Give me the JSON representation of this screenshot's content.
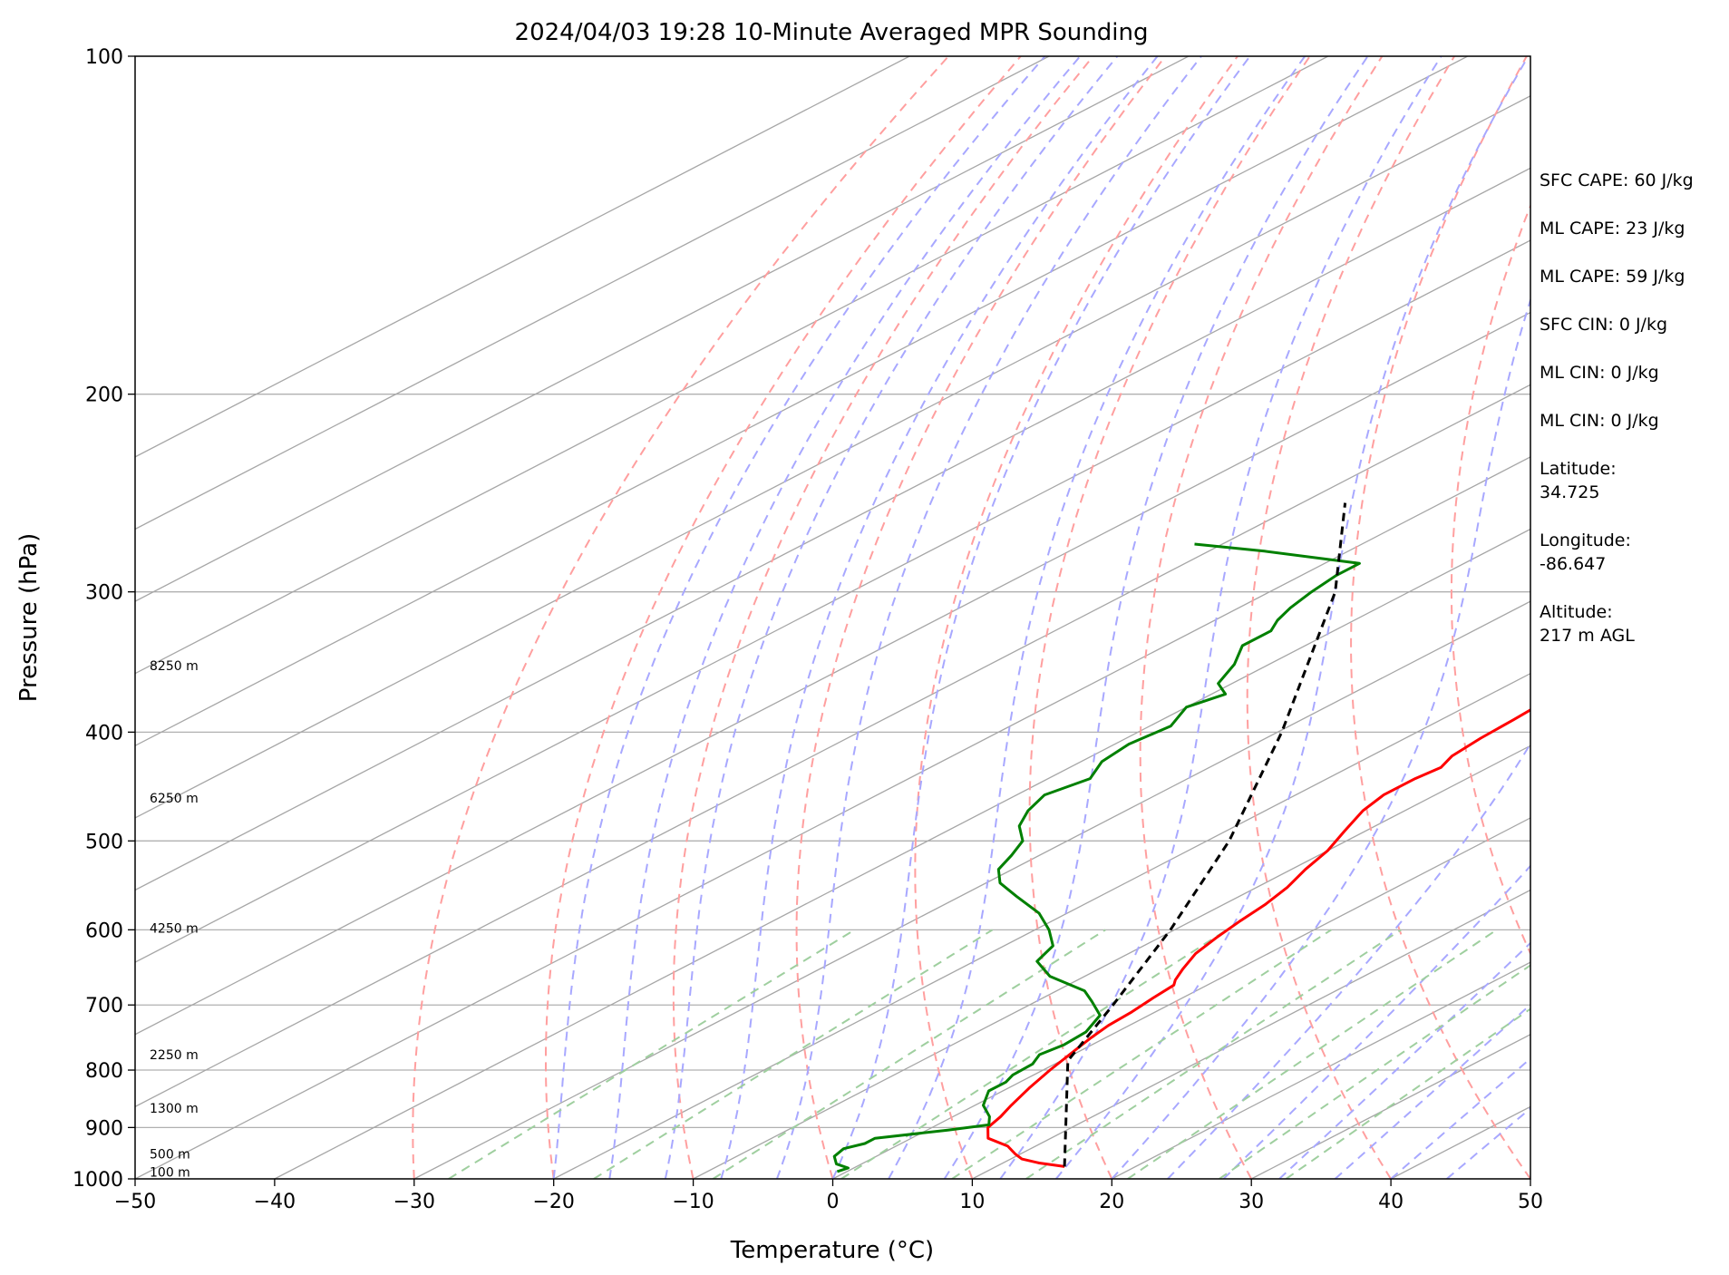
{
  "chart_data": {
    "type": "line",
    "subtype": "skew-t log-p sounding diagram",
    "title": "2024/04/03 19:28 10-Minute Averaged MPR Sounding",
    "xlabel": "Temperature (°C)",
    "ylabel": "Pressure (hPa)",
    "xlim": [
      -50,
      50
    ],
    "ylim": [
      1000,
      100
    ],
    "y_scale": "log (inverted)",
    "x_ticks": [
      "−50",
      "−40",
      "−30",
      "−20",
      "−10",
      "0",
      "10",
      "20",
      "30",
      "40",
      "50"
    ],
    "x_tick_values": [
      -50,
      -40,
      -30,
      -20,
      -10,
      0,
      10,
      20,
      30,
      40,
      50
    ],
    "y_ticks": [
      "100",
      "200",
      "300",
      "400",
      "500",
      "600",
      "700",
      "800",
      "900",
      "1000"
    ],
    "y_tick_values": [
      100,
      200,
      300,
      400,
      500,
      600,
      700,
      800,
      900,
      1000
    ],
    "grid": true,
    "skew_dx_per_log10p": 155.5,
    "background_lines": {
      "isotherms_color": "#a6a6a6",
      "dry_adiabats_color": "#ff9f9f",
      "moist_adiabats_color": "#a8a8ff",
      "mixing_ratio_color": "#9fcf9f",
      "isobar_color": "#b0b0b0"
    },
    "height_labels": [
      {
        "p": 986,
        "text": "100 m"
      },
      {
        "p": 950,
        "text": "500 m"
      },
      {
        "p": 865,
        "text": "1300 m"
      },
      {
        "p": 775,
        "text": "2250 m"
      },
      {
        "p": 598,
        "text": "4250 m"
      },
      {
        "p": 458,
        "text": "6250 m"
      },
      {
        "p": 349,
        "text": "8250 m"
      }
    ],
    "series": [
      {
        "kind": "temperature",
        "color": "#ff0000",
        "points": [
          {
            "p": 975,
            "t": 14.9
          },
          {
            "p": 968,
            "t": 12.6
          },
          {
            "p": 960,
            "t": 10.8
          },
          {
            "p": 950,
            "t": 9.6
          },
          {
            "p": 935,
            "t": 8.0
          },
          {
            "p": 920,
            "t": 5.5
          },
          {
            "p": 900,
            "t": 4.0
          },
          {
            "p": 880,
            "t": 3.4
          },
          {
            "p": 860,
            "t": 2.6
          },
          {
            "p": 830,
            "t": 1.5
          },
          {
            "p": 800,
            "t": 0.5
          },
          {
            "p": 770,
            "t": -0.4
          },
          {
            "p": 750,
            "t": -1.0
          },
          {
            "p": 730,
            "t": -1.5
          },
          {
            "p": 710,
            "t": -1.7
          },
          {
            "p": 690,
            "t": -2.1
          },
          {
            "p": 672,
            "t": -2.4
          },
          {
            "p": 665,
            "t": -3.0
          },
          {
            "p": 650,
            "t": -4.0
          },
          {
            "p": 630,
            "t": -5.2
          },
          {
            "p": 610,
            "t": -5.9
          },
          {
            "p": 590,
            "t": -6.5
          },
          {
            "p": 570,
            "t": -7.0
          },
          {
            "p": 550,
            "t": -7.8
          },
          {
            "p": 530,
            "t": -9.0
          },
          {
            "p": 510,
            "t": -10.0
          },
          {
            "p": 490,
            "t": -11.5
          },
          {
            "p": 470,
            "t": -13.0
          },
          {
            "p": 455,
            "t": -13.7
          },
          {
            "p": 440,
            "t": -13.7
          },
          {
            "p": 430,
            "t": -13.4
          },
          {
            "p": 420,
            "t": -14.2
          },
          {
            "p": 405,
            "t": -14.6
          },
          {
            "p": 390,
            "t": -14.8
          },
          {
            "p": 370,
            "t": -15.2
          },
          {
            "p": 355,
            "t": -16.0
          },
          {
            "p": 340,
            "t": -16.1
          },
          {
            "p": 325,
            "t": -16.2
          },
          {
            "p": 310,
            "t": -16.1
          },
          {
            "p": 295,
            "t": -16.3
          },
          {
            "p": 280,
            "t": -16.4
          },
          {
            "p": 270,
            "t": -15.8
          },
          {
            "p": 260,
            "t": -15.4
          },
          {
            "p": 250,
            "t": -15.3
          }
        ]
      },
      {
        "kind": "dewpoint",
        "color": "#008000",
        "points": [
          {
            "p": 985,
            "t": -0.7
          },
          {
            "p": 978,
            "t": -0.4
          },
          {
            "p": 970,
            "t": -1.8
          },
          {
            "p": 955,
            "t": -3.0
          },
          {
            "p": 940,
            "t": -3.4
          },
          {
            "p": 930,
            "t": -2.6
          },
          {
            "p": 920,
            "t": -2.6
          },
          {
            "p": 905,
            "t": 1.5
          },
          {
            "p": 895,
            "t": 3.7
          },
          {
            "p": 880,
            "t": 2.6
          },
          {
            "p": 860,
            "t": 0.6
          },
          {
            "p": 835,
            "t": -1.0
          },
          {
            "p": 820,
            "t": -1.0
          },
          {
            "p": 808,
            "t": -1.5
          },
          {
            "p": 790,
            "t": -1.6
          },
          {
            "p": 775,
            "t": -2.4
          },
          {
            "p": 760,
            "t": -2.0
          },
          {
            "p": 740,
            "t": -2.2
          },
          {
            "p": 715,
            "t": -3.5
          },
          {
            "p": 695,
            "t": -6.0
          },
          {
            "p": 680,
            "t": -8.0
          },
          {
            "p": 660,
            "t": -12.5
          },
          {
            "p": 640,
            "t": -15.5
          },
          {
            "p": 620,
            "t": -16.5
          },
          {
            "p": 600,
            "t": -19.0
          },
          {
            "p": 580,
            "t": -22.0
          },
          {
            "p": 560,
            "t": -26.0
          },
          {
            "p": 545,
            "t": -29.0
          },
          {
            "p": 530,
            "t": -31.0
          },
          {
            "p": 515,
            "t": -32.0
          },
          {
            "p": 500,
            "t": -33.2
          },
          {
            "p": 485,
            "t": -35.5
          },
          {
            "p": 470,
            "t": -37.0
          },
          {
            "p": 455,
            "t": -38.0
          },
          {
            "p": 440,
            "t": -37.0
          },
          {
            "p": 425,
            "t": -38.5
          },
          {
            "p": 410,
            "t": -39.0
          },
          {
            "p": 395,
            "t": -38.5
          },
          {
            "p": 380,
            "t": -40.0
          },
          {
            "p": 370,
            "t": -39.0
          },
          {
            "p": 362,
            "t": -41.0
          },
          {
            "p": 348,
            "t": -42.5
          },
          {
            "p": 335,
            "t": -44.5
          },
          {
            "p": 325,
            "t": -44.5
          },
          {
            "p": 318,
            "t": -45.5
          },
          {
            "p": 310,
            "t": -46.3
          },
          {
            "p": 300,
            "t": -47.0
          },
          {
            "p": 290,
            "t": -47.5
          },
          {
            "p": 283,
            "t": -47.5
          },
          {
            "p": 276,
            "t": -56.0
          },
          {
            "p": 272,
            "t": -62.0
          }
        ]
      },
      {
        "kind": "parcel",
        "color": "#000000",
        "style": "dashed",
        "points": [
          {
            "p": 975,
            "t": 14.9
          },
          {
            "p": 785,
            "t": 0.5
          },
          {
            "p": 700,
            "t": -4.0
          },
          {
            "p": 600,
            "t": -10.3
          },
          {
            "p": 500,
            "t": -18.4
          },
          {
            "p": 400,
            "t": -29.7
          },
          {
            "p": 300,
            "t": -45.3
          },
          {
            "p": 250,
            "t": -56.9
          }
        ]
      }
    ]
  },
  "side_panel": [
    "SFC CAPE: 60 J/kg",
    "ML CAPE: 23 J/kg",
    "ML CAPE: 59 J/kg",
    "SFC CIN: 0 J/kg",
    "ML CIN: 0 J/kg",
    "ML CIN: 0 J/kg",
    "Latitude:\n34.725",
    "Longitude:\n-86.647",
    "Altitude:\n217 m AGL"
  ]
}
